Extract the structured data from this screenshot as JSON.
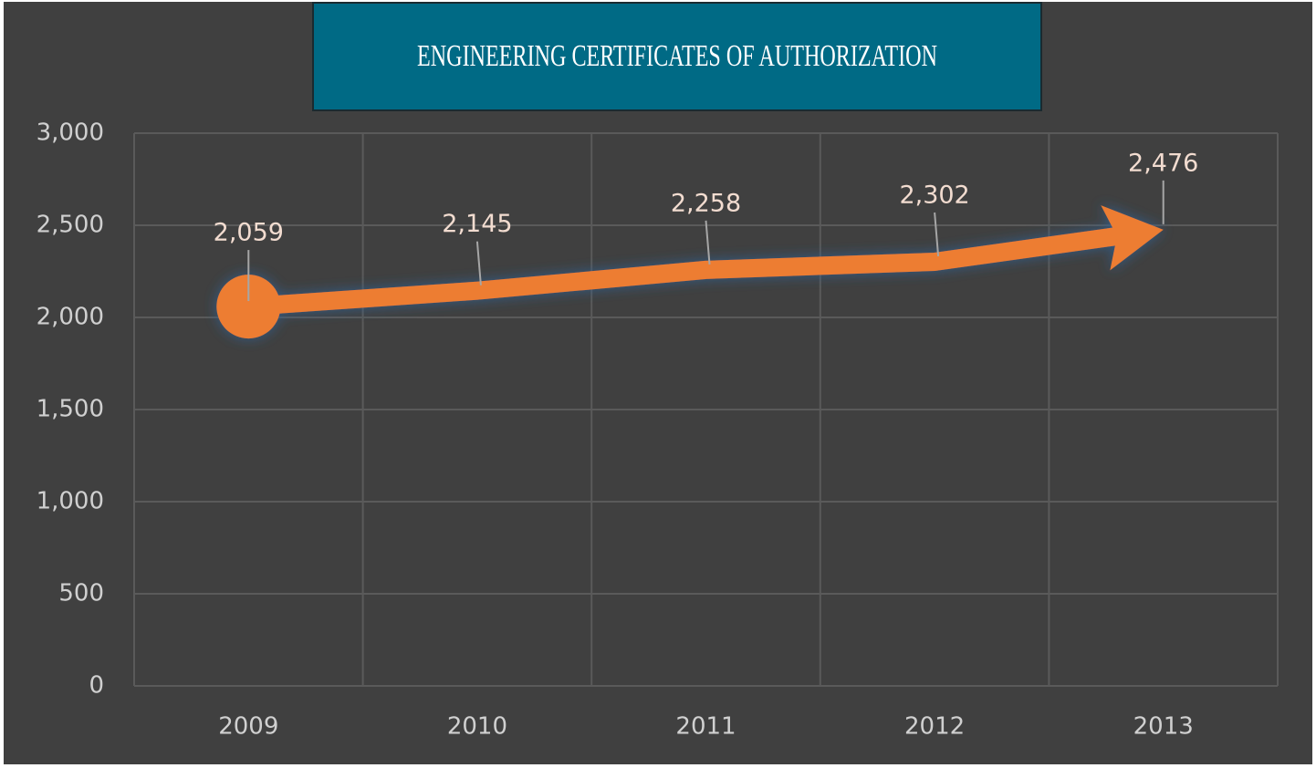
{
  "chart_data": {
    "type": "line",
    "title": "ENGINEERING CERTIFICATES OF AUTHORIZATION",
    "categories": [
      "2009",
      "2010",
      "2011",
      "2012",
      "2013"
    ],
    "series": [
      {
        "color": "#ed7d31",
        "values": [
          2059,
          2145,
          2258,
          2302,
          2476
        ],
        "value_labels": [
          "2,059",
          "2,145",
          "2,258",
          "2,302",
          "2,476"
        ]
      }
    ],
    "ylim": [
      0,
      3000
    ],
    "yticks": [
      0,
      500,
      {
        "value": 1000,
        "label": "1,000"
      },
      {
        "value": 1500,
        "label": "1,500"
      },
      {
        "value": 2000,
        "label": "2,000"
      },
      {
        "value": 2500,
        "label": "2,500"
      },
      {
        "value": 3000,
        "label": "3,000"
      }
    ],
    "grid": true
  }
}
